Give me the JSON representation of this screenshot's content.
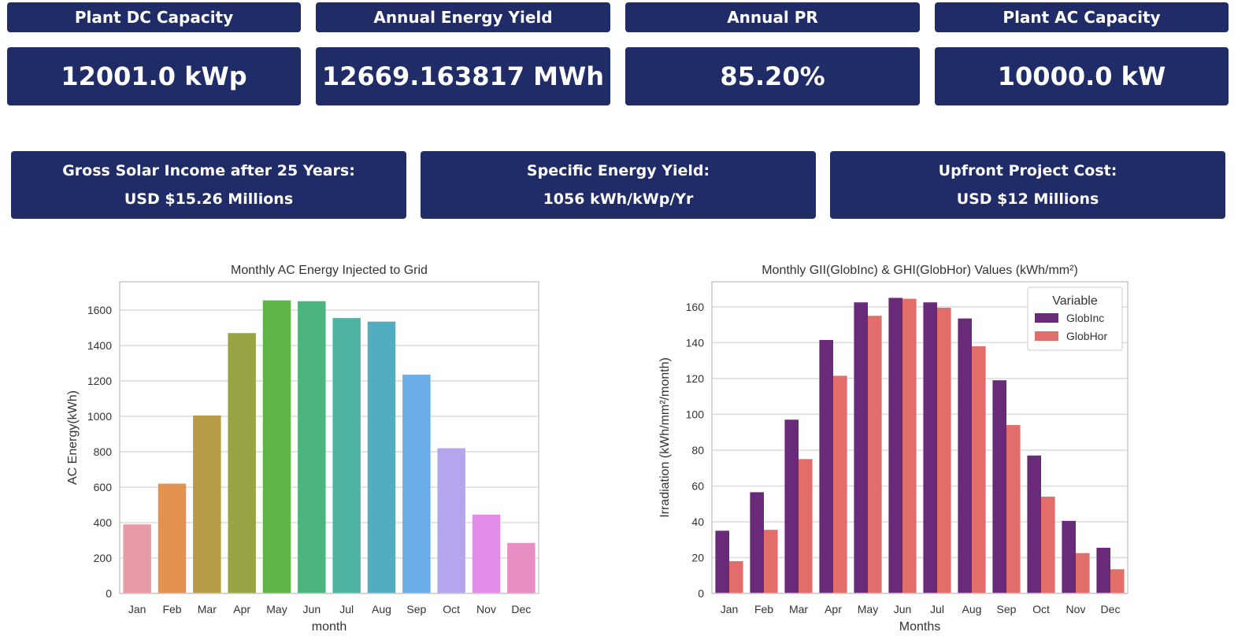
{
  "kpis": [
    {
      "label": "Plant DC Capacity",
      "value": "12001.0 kWp"
    },
    {
      "label": "Annual Energy Yield",
      "value": "12669.163817 MWh"
    },
    {
      "label": "Annual PR",
      "value": "85.20%"
    },
    {
      "label": "Plant AC Capacity",
      "value": "10000.0 kW"
    }
  ],
  "info": [
    {
      "title": "Gross Solar Income after 25 Years:",
      "value": "USD $15.26 Millions"
    },
    {
      "title": "Specific Energy Yield:",
      "value": "1056 kWh/kWp/Yr"
    },
    {
      "title": "Upfront Project Cost:",
      "value": "USD $12 Millions"
    }
  ],
  "colors": {
    "card_bg": "#1f2c68",
    "card_text": "#ffffff"
  },
  "chart_data": [
    {
      "type": "bar",
      "title": "Monthly AC Energy Injected to Grid",
      "xlabel": "month",
      "ylabel": "AC Energy(kWh)",
      "ylim": [
        0,
        1760
      ],
      "yticks": [
        0,
        200,
        400,
        600,
        800,
        1000,
        1200,
        1400,
        1600
      ],
      "grid": true,
      "categories": [
        "Jan",
        "Feb",
        "Mar",
        "Apr",
        "May",
        "Jun",
        "Jul",
        "Aug",
        "Sep",
        "Oct",
        "Nov",
        "Dec"
      ],
      "values": [
        390,
        620,
        1005,
        1470,
        1655,
        1650,
        1555,
        1535,
        1235,
        820,
        445,
        285
      ],
      "colors": [
        "#e89aa6",
        "#e4924f",
        "#b89b46",
        "#98a444",
        "#5eb445",
        "#4cb57f",
        "#4fb3a2",
        "#51adbf",
        "#6aace6",
        "#b6a5ec",
        "#e18de9",
        "#e78ec4"
      ]
    },
    {
      "type": "bar",
      "title": "Monthly GII(GlobInc) & GHI(GlobHor) Values (kWh/mm²)",
      "xlabel": "Months",
      "ylabel": "Irradiation (kWh/mm²/month)",
      "ylim": [
        0,
        174
      ],
      "yticks": [
        0,
        20,
        40,
        60,
        80,
        100,
        120,
        140,
        160
      ],
      "grid": true,
      "legend_title": "Variable",
      "legend_position": "top-right",
      "categories": [
        "Jan",
        "Feb",
        "Mar",
        "Apr",
        "May",
        "Jun",
        "Jul",
        "Aug",
        "Sep",
        "Oct",
        "Nov",
        "Dec"
      ],
      "series": [
        {
          "name": "GlobInc",
          "color": "#6a2a7a",
          "values": [
            35,
            56.5,
            97,
            141.5,
            162.5,
            165,
            162.5,
            153.5,
            119,
            77,
            40.5,
            25.5
          ]
        },
        {
          "name": "GlobHor",
          "color": "#e26e6c",
          "values": [
            18,
            35.5,
            75,
            121.5,
            155,
            164.5,
            159.5,
            138,
            94,
            54,
            22.5,
            13.5
          ]
        }
      ]
    }
  ]
}
